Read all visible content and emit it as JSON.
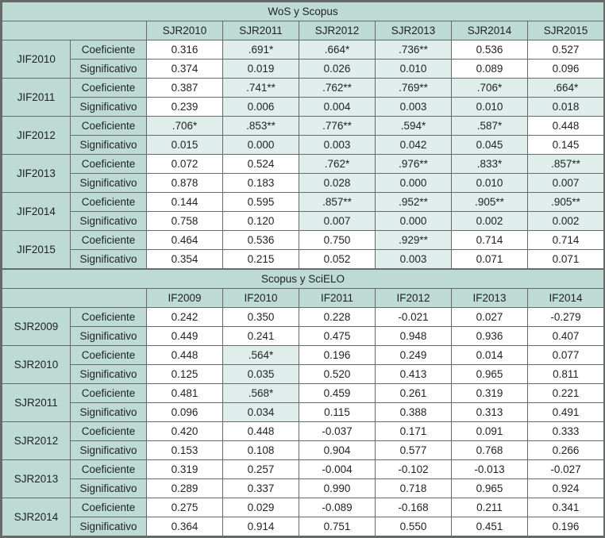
{
  "colors": {
    "border": "#666a68",
    "header_bg": "#bedad5",
    "highlight_bg": "#dfeeeb",
    "cell_bg": "#ffffff",
    "text": "#1f2121"
  },
  "labels": {
    "coefficient": "Coeficiente",
    "significance": "Significativo"
  },
  "tables": [
    {
      "title": "WoS y Scopus",
      "columns": [
        "SJR2010",
        "SJR2011",
        "SJR2012",
        "SJR2013",
        "SJR2014",
        "SJR2015"
      ],
      "groups": [
        {
          "label": "JIF2010",
          "coefficient": [
            "0.316",
            ".691*",
            ".664*",
            ".736**",
            "0.536",
            "0.527"
          ],
          "significance": [
            "0.374",
            "0.019",
            "0.026",
            "0.010",
            "0.089",
            "0.096"
          ],
          "highlight": [
            0,
            1,
            1,
            1,
            0,
            0
          ]
        },
        {
          "label": "JIF2011",
          "coefficient": [
            "0.387",
            ".741**",
            ".762**",
            ".769**",
            ".706*",
            ".664*"
          ],
          "significance": [
            "0.239",
            "0.006",
            "0.004",
            "0.003",
            "0.010",
            "0.018"
          ],
          "highlight": [
            0,
            1,
            1,
            1,
            1,
            1
          ]
        },
        {
          "label": "JIF2012",
          "coefficient": [
            ".706*",
            ".853**",
            ".776**",
            ".594*",
            ".587*",
            "0.448"
          ],
          "significance": [
            "0.015",
            "0.000",
            "0.003",
            "0.042",
            "0.045",
            "0.145"
          ],
          "highlight": [
            1,
            1,
            1,
            1,
            1,
            0
          ]
        },
        {
          "label": "JIF2013",
          "coefficient": [
            "0.072",
            "0.524",
            ".762*",
            ".976**",
            ".833*",
            ".857**"
          ],
          "significance": [
            "0.878",
            "0.183",
            "0.028",
            "0.000",
            "0.010",
            "0.007"
          ],
          "highlight": [
            0,
            0,
            1,
            1,
            1,
            1
          ]
        },
        {
          "label": "JIF2014",
          "coefficient": [
            "0.144",
            "0.595",
            ".857**",
            ".952**",
            ".905**",
            ".905**"
          ],
          "significance": [
            "0.758",
            "0.120",
            "0.007",
            "0.000",
            "0.002",
            "0.002"
          ],
          "highlight": [
            0,
            0,
            1,
            1,
            1,
            1
          ]
        },
        {
          "label": "JIF2015",
          "coefficient": [
            "0.464",
            "0.536",
            "0.750",
            ".929**",
            "0.714",
            "0.714"
          ],
          "significance": [
            "0.354",
            "0.215",
            "0.052",
            "0.003",
            "0.071",
            "0.071"
          ],
          "highlight": [
            0,
            0,
            0,
            1,
            0,
            0
          ]
        }
      ]
    },
    {
      "title": "Scopus y SciELO",
      "columns": [
        "IF2009",
        "IF2010",
        "IF2011",
        "IF2012",
        "IF2013",
        "IF2014"
      ],
      "groups": [
        {
          "label": "SJR2009",
          "coefficient": [
            "0.242",
            "0.350",
            "0.228",
            "-0.021",
            "0.027",
            "-0.279"
          ],
          "significance": [
            "0.449",
            "0.241",
            "0.475",
            "0.948",
            "0.936",
            "0.407"
          ],
          "highlight": [
            0,
            0,
            0,
            0,
            0,
            0
          ]
        },
        {
          "label": "SJR2010",
          "coefficient": [
            "0.448",
            ".564*",
            "0.196",
            "0.249",
            "0.014",
            "0.077"
          ],
          "significance": [
            "0.125",
            "0.035",
            "0.520",
            "0.413",
            "0.965",
            "0.811"
          ],
          "highlight": [
            0,
            1,
            0,
            0,
            0,
            0
          ]
        },
        {
          "label": "SJR2011",
          "coefficient": [
            "0.481",
            ".568*",
            "0.459",
            "0.261",
            "0.319",
            "0.221"
          ],
          "significance": [
            "0.096",
            "0.034",
            "0.115",
            "0.388",
            "0.313",
            "0.491"
          ],
          "highlight": [
            0,
            1,
            0,
            0,
            0,
            0
          ]
        },
        {
          "label": "SJR2012",
          "coefficient": [
            "0.420",
            "0.448",
            "-0.037",
            "0.171",
            "0.091",
            "0.333"
          ],
          "significance": [
            "0.153",
            "0.108",
            "0.904",
            "0.577",
            "0.768",
            "0.266"
          ],
          "highlight": [
            0,
            0,
            0,
            0,
            0,
            0
          ]
        },
        {
          "label": "SJR2013",
          "coefficient": [
            "0.319",
            "0.257",
            "-0.004",
            "-0.102",
            "-0.013",
            "-0.027"
          ],
          "significance": [
            "0.289",
            "0.337",
            "0.990",
            "0.718",
            "0.965",
            "0.924"
          ],
          "highlight": [
            0,
            0,
            0,
            0,
            0,
            0
          ]
        },
        {
          "label": "SJR2014",
          "coefficient": [
            "0.275",
            "0.029",
            "-0.089",
            "-0.168",
            "0.211",
            "0.341"
          ],
          "significance": [
            "0.364",
            "0.914",
            "0.751",
            "0.550",
            "0.451",
            "0.196"
          ],
          "highlight": [
            0,
            0,
            0,
            0,
            0,
            0
          ]
        }
      ]
    }
  ]
}
